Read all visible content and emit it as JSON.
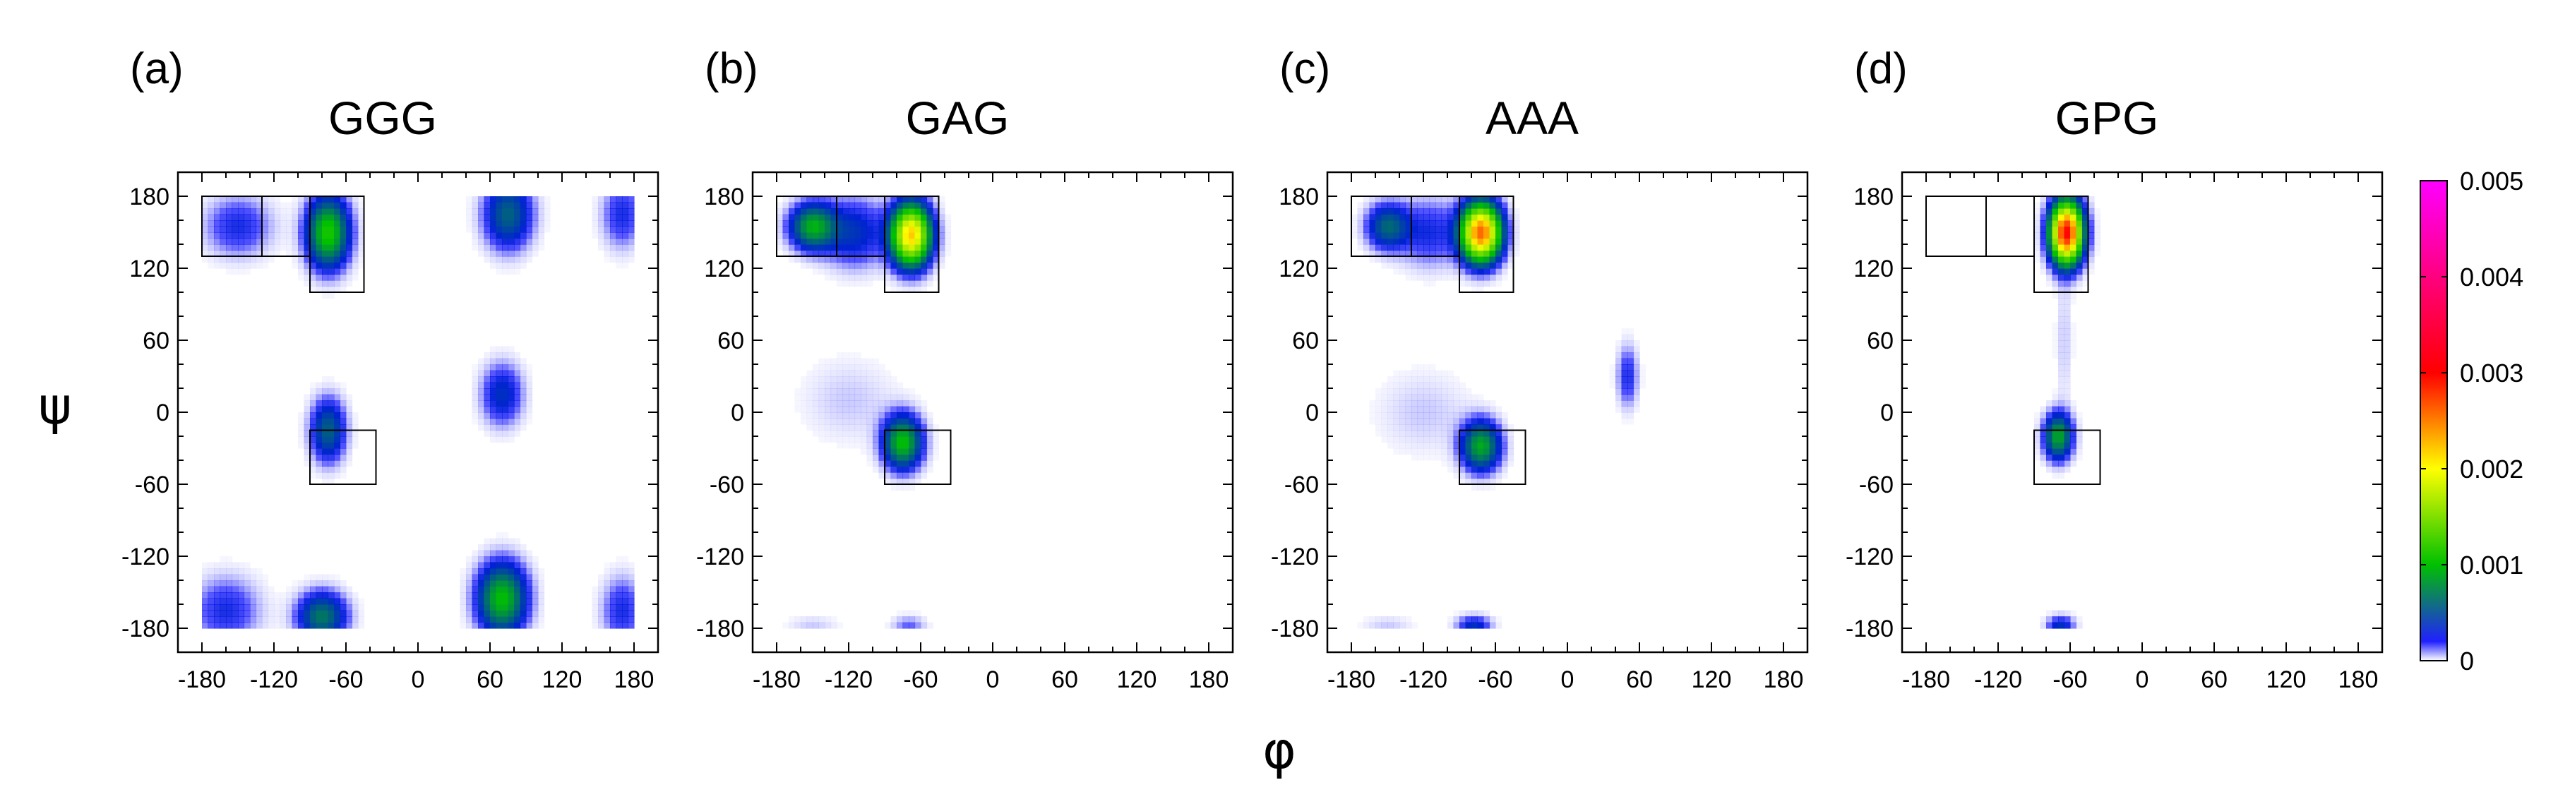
{
  "figure": {
    "ylabel": "ψ",
    "xlabel": "φ",
    "colorbar": {
      "ticks": [
        "0",
        "0.001",
        "0.002",
        "0.003",
        "0.004",
        "0.005"
      ],
      "min": 0,
      "max": 0.005,
      "colors": [
        "#ffffff",
        "#0000ff",
        "#00c000",
        "#ffff00",
        "#ff0000",
        "#ff00ff"
      ]
    }
  },
  "chart_data": [
    {
      "type": "heatmap",
      "panel": "(a)",
      "title": "GGG",
      "xlim": [
        -200,
        200
      ],
      "ylim": [
        -200,
        200
      ],
      "xticks": [
        -180,
        -120,
        -60,
        0,
        60,
        120,
        180
      ],
      "yticks": [
        -180,
        -120,
        -60,
        0,
        60,
        120,
        180
      ],
      "xtick_labels": [
        "-180",
        "-120",
        "-60",
        "0",
        "60",
        "120",
        "180"
      ],
      "ytick_labels": [
        "-180",
        "-120",
        "-60",
        "0",
        "60",
        "120",
        "180"
      ],
      "clusters": [
        {
          "phi": -75,
          "psi": 150,
          "sphi": 12,
          "spsi": 20,
          "peak": 0.0011
        },
        {
          "phi": -150,
          "psi": 155,
          "sphi": 20,
          "spsi": 18,
          "peak": 0.0003
        },
        {
          "phi": -75,
          "psi": -15,
          "sphi": 10,
          "spsi": 18,
          "peak": 0.0006
        },
        {
          "phi": 75,
          "psi": 165,
          "sphi": 14,
          "spsi": 20,
          "peak": 0.0006
        },
        {
          "phi": 70,
          "psi": 15,
          "sphi": 12,
          "spsi": 18,
          "peak": 0.0004
        },
        {
          "phi": 70,
          "psi": -155,
          "sphi": 14,
          "spsi": 20,
          "peak": 0.001
        },
        {
          "phi": -80,
          "psi": -170,
          "sphi": 14,
          "spsi": 14,
          "peak": 0.0007
        },
        {
          "phi": -160,
          "psi": -165,
          "sphi": 20,
          "spsi": 20,
          "peak": 0.0003
        },
        {
          "phi": 170,
          "psi": -165,
          "sphi": 12,
          "spsi": 20,
          "peak": 0.0003
        },
        {
          "phi": 170,
          "psi": 165,
          "sphi": 12,
          "spsi": 20,
          "peak": 0.0003
        }
      ],
      "boxes": [
        {
          "phi": [
            -180,
            -130
          ],
          "psi": [
            130,
            180
          ]
        },
        {
          "phi": [
            -130,
            -90
          ],
          "psi": [
            130,
            180
          ]
        },
        {
          "phi": [
            -90,
            -45
          ],
          "psi": [
            100,
            180
          ]
        },
        {
          "phi": [
            -90,
            -35
          ],
          "psi": [
            -60,
            -15
          ]
        }
      ]
    },
    {
      "type": "heatmap",
      "panel": "(b)",
      "title": "GAG",
      "xlim": [
        -200,
        200
      ],
      "ylim": [
        -200,
        200
      ],
      "xticks": [
        -180,
        -120,
        -60,
        0,
        60,
        120,
        180
      ],
      "yticks": [
        -180,
        -120,
        -60,
        0,
        60,
        120,
        180
      ],
      "xtick_labels": [
        "-180",
        "-120",
        "-60",
        "0",
        "60",
        "120",
        "180"
      ],
      "ytick_labels": [
        "-180",
        "-120",
        "-60",
        "0",
        "60",
        "120",
        "180"
      ],
      "clusters": [
        {
          "phi": -68,
          "psi": 148,
          "sphi": 11,
          "spsi": 17,
          "peak": 0.0022
        },
        {
          "phi": -150,
          "psi": 155,
          "sphi": 13,
          "spsi": 13,
          "peak": 0.0009
        },
        {
          "phi": -115,
          "psi": 150,
          "sphi": 18,
          "spsi": 20,
          "peak": 0.0004
        },
        {
          "phi": -75,
          "psi": -25,
          "sphi": 11,
          "spsi": 15,
          "peak": 0.001
        },
        {
          "phi": -120,
          "psi": 10,
          "sphi": 28,
          "spsi": 25,
          "peak": 0.0001
        },
        {
          "phi": -70,
          "psi": -178,
          "sphi": 10,
          "spsi": 6,
          "peak": 0.0002
        },
        {
          "phi": -150,
          "psi": -178,
          "sphi": 15,
          "spsi": 6,
          "peak": 0.0001
        }
      ],
      "boxes": [
        {
          "phi": [
            -180,
            -130
          ],
          "psi": [
            130,
            180
          ]
        },
        {
          "phi": [
            -130,
            -90
          ],
          "psi": [
            130,
            180
          ]
        },
        {
          "phi": [
            -90,
            -45
          ],
          "psi": [
            100,
            180
          ]
        },
        {
          "phi": [
            -90,
            -35
          ],
          "psi": [
            -60,
            -15
          ]
        }
      ]
    },
    {
      "type": "heatmap",
      "panel": "(c)",
      "title": "AAA",
      "xlim": [
        -200,
        200
      ],
      "ylim": [
        -200,
        200
      ],
      "xticks": [
        -180,
        -120,
        -60,
        0,
        60,
        120,
        180
      ],
      "yticks": [
        -180,
        -120,
        -60,
        0,
        60,
        120,
        180
      ],
      "xtick_labels": [
        "-180",
        "-120",
        "-60",
        "0",
        "60",
        "120",
        "180"
      ],
      "ytick_labels": [
        "-180",
        "-120",
        "-60",
        "0",
        "60",
        "120",
        "180"
      ],
      "clusters": [
        {
          "phi": -72,
          "psi": 150,
          "sphi": 11,
          "spsi": 16,
          "peak": 0.0026
        },
        {
          "phi": -150,
          "psi": 155,
          "sphi": 12,
          "spsi": 13,
          "peak": 0.0006
        },
        {
          "phi": -115,
          "psi": 150,
          "sphi": 18,
          "spsi": 20,
          "peak": 0.0003
        },
        {
          "phi": -72,
          "psi": -28,
          "sphi": 11,
          "spsi": 14,
          "peak": 0.0009
        },
        {
          "phi": 50,
          "psi": 30,
          "sphi": 6,
          "spsi": 18,
          "peak": 0.0003
        },
        {
          "phi": -78,
          "psi": -178,
          "sphi": 10,
          "spsi": 6,
          "peak": 0.0004
        },
        {
          "phi": -150,
          "psi": -178,
          "sphi": 15,
          "spsi": 6,
          "peak": 0.0001
        },
        {
          "phi": -120,
          "psi": 0,
          "sphi": 28,
          "spsi": 25,
          "peak": 0.0001
        }
      ],
      "boxes": [
        {
          "phi": [
            -180,
            -130
          ],
          "psi": [
            130,
            180
          ]
        },
        {
          "phi": [
            -130,
            -90
          ],
          "psi": [
            130,
            180
          ]
        },
        {
          "phi": [
            -90,
            -45
          ],
          "psi": [
            100,
            180
          ]
        },
        {
          "phi": [
            -90,
            -35
          ],
          "psi": [
            -60,
            -15
          ]
        }
      ]
    },
    {
      "type": "heatmap",
      "panel": "(d)",
      "title": "GPG",
      "xlim": [
        -200,
        200
      ],
      "ylim": [
        -200,
        200
      ],
      "xticks": [
        -180,
        -120,
        -60,
        0,
        60,
        120,
        180
      ],
      "yticks": [
        -180,
        -120,
        -60,
        0,
        60,
        120,
        180
      ],
      "xtick_labels": [
        "-180",
        "-120",
        "-60",
        "0",
        "60",
        "120",
        "180"
      ],
      "ytick_labels": [
        "-180",
        "-120",
        "-60",
        "0",
        "60",
        "120",
        "180"
      ],
      "clusters": [
        {
          "phi": -63,
          "psi": 150,
          "sphi": 9,
          "spsi": 17,
          "peak": 0.003
        },
        {
          "phi": -70,
          "psi": -20,
          "sphi": 8,
          "spsi": 13,
          "peak": 0.0009
        },
        {
          "phi": -65,
          "psi": 60,
          "sphi": 5,
          "spsi": 40,
          "peak": 0.0001
        },
        {
          "phi": -68,
          "psi": -178,
          "sphi": 8,
          "spsi": 6,
          "peak": 0.0004
        }
      ],
      "boxes": [
        {
          "phi": [
            -180,
            -130
          ],
          "psi": [
            130,
            180
          ]
        },
        {
          "phi": [
            -130,
            -90
          ],
          "psi": [
            130,
            180
          ]
        },
        {
          "phi": [
            -90,
            -45
          ],
          "psi": [
            100,
            180
          ]
        },
        {
          "phi": [
            -90,
            -35
          ],
          "psi": [
            -60,
            -15
          ]
        }
      ]
    }
  ]
}
